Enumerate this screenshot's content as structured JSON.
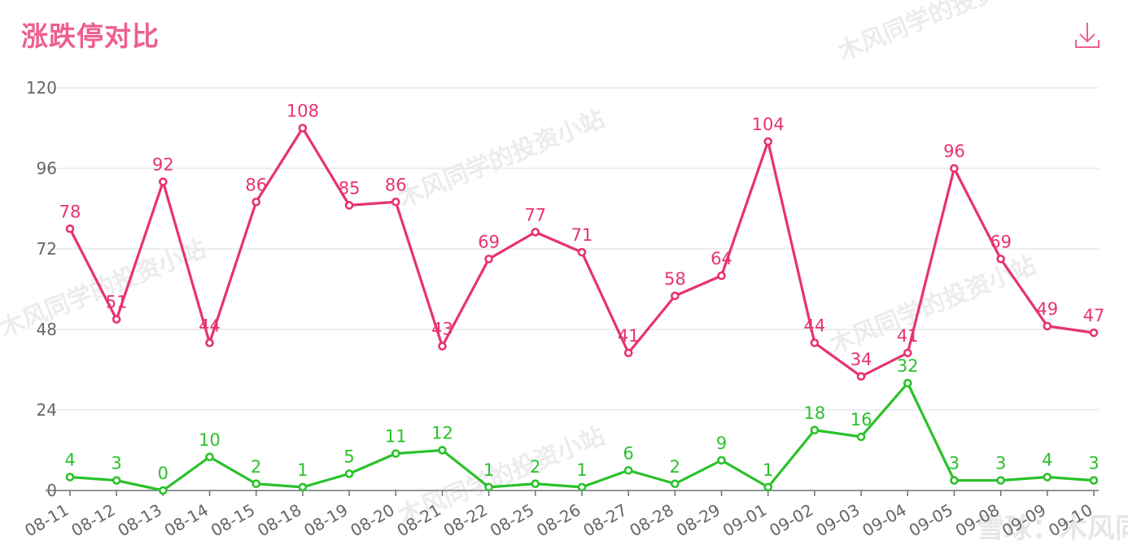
{
  "header": {
    "title": "涨跌停对比",
    "download_icon": "download-icon"
  },
  "watermark": {
    "text": "木风同学的投资小站",
    "platform": "雪球：木风同学"
  },
  "colors": {
    "up_line": "#e8336b",
    "down_line": "#2bc12b",
    "title": "#ee5f8d",
    "grid": "#e1e4ee",
    "axis_text": "#666666"
  },
  "chart_data": {
    "type": "line",
    "title": "涨跌停对比",
    "categories": [
      "08-11",
      "08-12",
      "08-13",
      "08-14",
      "08-15",
      "08-18",
      "08-19",
      "08-20",
      "08-21",
      "08-22",
      "08-25",
      "08-26",
      "08-27",
      "08-28",
      "08-29",
      "09-01",
      "09-02",
      "09-03",
      "09-04",
      "09-05",
      "09-08",
      "09-09",
      "09-10"
    ],
    "series": [
      {
        "values": [
          78,
          51,
          92,
          44,
          86,
          108,
          85,
          86,
          43,
          69,
          77,
          71,
          41,
          58,
          64,
          104,
          44,
          34,
          41,
          96,
          69,
          49,
          47
        ],
        "color": "#e8336b"
      },
      {
        "values": [
          4,
          3,
          0,
          10,
          2,
          1,
          5,
          11,
          12,
          1,
          2,
          1,
          6,
          2,
          9,
          1,
          18,
          16,
          32,
          3,
          3,
          4,
          3
        ],
        "color": "#2bc12b"
      }
    ],
    "yticks": [
      0,
      24,
      48,
      72,
      96,
      120
    ],
    "ylim": [
      0,
      120
    ],
    "grid": true,
    "data_labels": true
  }
}
